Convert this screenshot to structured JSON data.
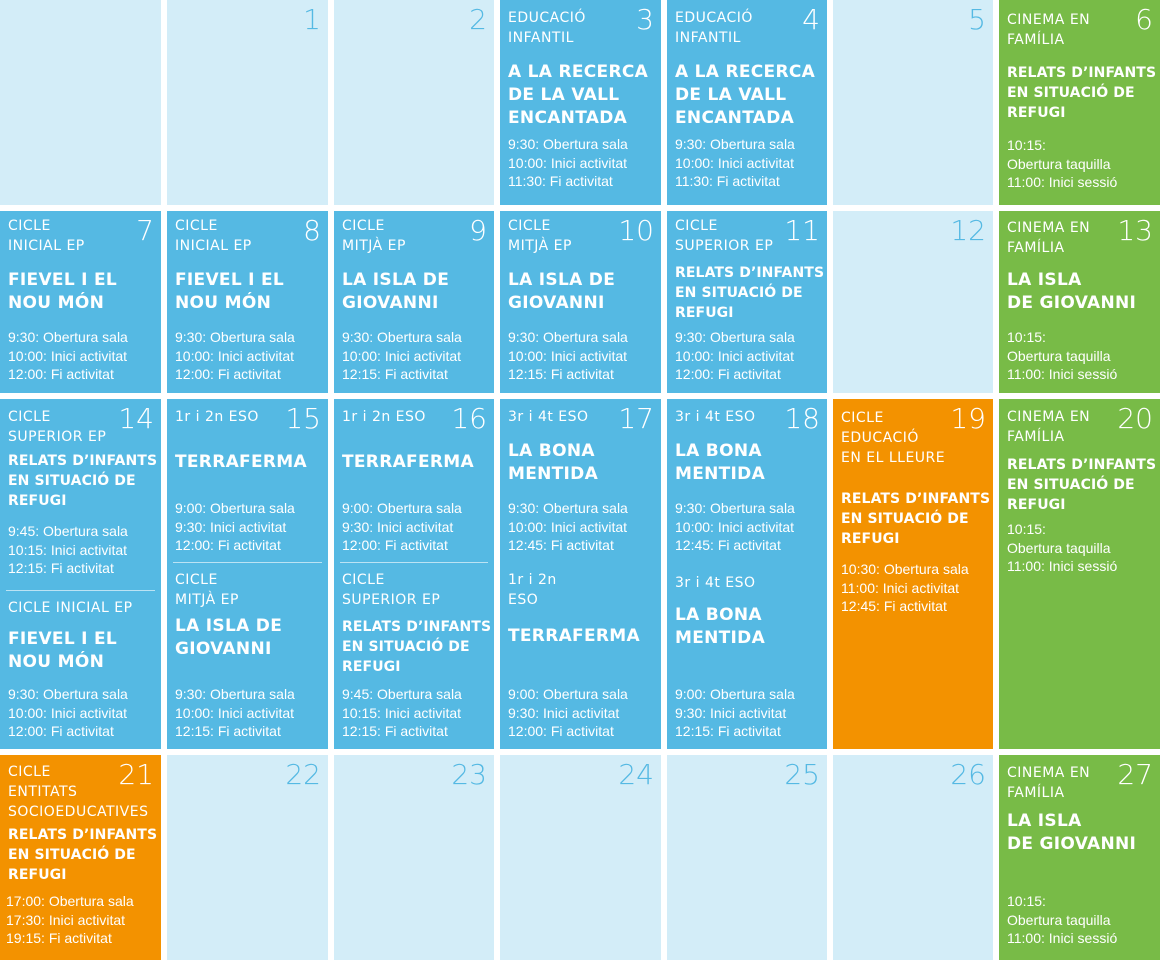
{
  "calendar": {
    "row1": {
      "d1": {
        "day": "1"
      },
      "d2": {
        "day": "2"
      },
      "d3": {
        "day": "3",
        "category": "EDUCACIÓ\nINFANTIL",
        "title": "A LA RECERCA\nDE LA VALL\nENCANTADA",
        "times": "9:30: Obertura sala\n10:00: Inici activitat\n11:30: Fi activitat"
      },
      "d4": {
        "day": "4",
        "category": "EDUCACIÓ\nINFANTIL",
        "title": "A LA RECERCA\nDE LA VALL\nENCANTADA",
        "times": "9:30: Obertura sala\n10:00: Inici activitat\n11:30: Fi activitat"
      },
      "d5": {
        "day": "5"
      },
      "d6": {
        "day": "6",
        "category": "CINEMA EN\nFAMÍLIA",
        "title": "RELATS D’INFANTS\nEN SITUACIÓ DE\nREFUGI",
        "times": "10:15:\nObertura taquilla\n11:00: Inici sessió"
      }
    },
    "row2": {
      "d7": {
        "day": "7",
        "category": "CICLE\nINICIAL EP",
        "title": "FIEVEL I EL\nNOU MÓN",
        "times": "9:30: Obertura sala\n10:00: Inici activitat\n12:00: Fi activitat"
      },
      "d8": {
        "day": "8",
        "category": "CICLE\nINICIAL EP",
        "title": "FIEVEL I EL\nNOU MÓN",
        "times": "9:30: Obertura sala\n10:00: Inici activitat\n12:00: Fi activitat"
      },
      "d9": {
        "day": "9",
        "category": "CICLE\nMITJÀ EP",
        "title": "LA ISLA DE\nGIOVANNI",
        "times": "9:30: Obertura sala\n10:00: Inici activitat\n12:15: Fi activitat"
      },
      "d10": {
        "day": "10",
        "category": "CICLE\nMITJÀ EP",
        "title": "LA ISLA DE\nGIOVANNI",
        "times": "9:30: Obertura sala\n10:00: Inici activitat\n12:15: Fi activitat"
      },
      "d11": {
        "day": "11",
        "category": "CICLE\nSUPERIOR EP",
        "title": "RELATS D’INFANTS\nEN SITUACIÓ DE\nREFUGI",
        "times": "9:30: Obertura sala\n10:00: Inici activitat\n12:00: Fi activitat"
      },
      "d12": {
        "day": "12"
      },
      "d13": {
        "day": "13",
        "category": "CINEMA EN\nFAMÍLIA",
        "title": "LA ISLA\nDE GIOVANNI",
        "times": "10:15:\nObertura taquilla\n11:00: Inici sessió"
      }
    },
    "row3": {
      "d14": {
        "day": "14",
        "a": {
          "category": "CICLE\nSUPERIOR EP",
          "title": "RELATS D’INFANTS\nEN SITUACIÓ DE\nREFUGI",
          "times": "9:45: Obertura sala\n10:15: Inici activitat\n12:15: Fi activitat"
        },
        "b": {
          "category": "CICLE INICIAL EP",
          "title": "FIEVEL I EL\nNOU MÓN",
          "times": "9:30: Obertura sala\n10:00: Inici activitat\n12:00: Fi activitat"
        }
      },
      "d15": {
        "day": "15",
        "a": {
          "category": "1r i 2n ESO",
          "title": "TERRAFERMA",
          "times": "9:00: Obertura sala\n9:30: Inici activitat\n12:00: Fi activitat"
        },
        "b": {
          "category": "CICLE\nMITJÀ EP",
          "title": "LA ISLA DE\nGIOVANNI",
          "times": "9:30: Obertura sala\n10:00: Inici activitat\n12:15: Fi activitat"
        }
      },
      "d16": {
        "day": "16",
        "a": {
          "category": "1r i 2n ESO",
          "title": "TERRAFERMA",
          "times": "9:00: Obertura sala\n9:30: Inici activitat\n12:00: Fi activitat"
        },
        "b": {
          "category": "CICLE\nSUPERIOR EP",
          "title": "RELATS D’INFANTS\nEN SITUACIÓ DE\nREFUGI",
          "times": "9:45: Obertura sala\n10:15: Inici activitat\n12:15: Fi activitat"
        }
      },
      "d17": {
        "day": "17",
        "a": {
          "category": "3r i 4t ESO",
          "title": "LA BONA\nMENTIDA",
          "times": "9:30: Obertura sala\n10:00: Inici activitat\n12:45: Fi activitat"
        },
        "b": {
          "category": "1r i 2n\nESO",
          "title": "TERRAFERMA",
          "times": "9:00: Obertura sala\n9:30: Inici activitat\n12:00: Fi activitat"
        }
      },
      "d18": {
        "day": "18",
        "a": {
          "category": "3r i 4t ESO",
          "title": "LA BONA\nMENTIDA",
          "times": "9:30: Obertura sala\n10:00: Inici activitat\n12:45: Fi activitat"
        },
        "b": {
          "category": "3r i 4t ESO",
          "title": "LA BONA\nMENTIDA",
          "times": "9:00: Obertura sala\n9:30: Inici activitat\n12:15: Fi activitat"
        }
      },
      "d19": {
        "day": "19",
        "category": "CICLE\nEDUCACIÓ\nEN EL LLEURE",
        "title": "RELATS D’INFANTS\nEN SITUACIÓ DE\nREFUGI",
        "times": "10:30: Obertura sala\n11:00: Inici activitat\n12:45: Fi activitat"
      },
      "d20": {
        "day": "20",
        "category": "CINEMA EN\nFAMÍLIA",
        "title": "RELATS D’INFANTS\nEN SITUACIÓ DE\nREFUGI",
        "times": "10:15:\nObertura taquilla\n11:00: Inici sessió"
      }
    },
    "row4": {
      "d21": {
        "day": "21",
        "category": "CICLE\nENTITATS\nSOCIOEDUCATIVES",
        "title": "RELATS D’INFANTS\nEN SITUACIÓ DE\nREFUGI",
        "times": "17:00: Obertura sala\n17:30: Inici activitat\n19:15: Fi activitat"
      },
      "d22": {
        "day": "22"
      },
      "d23": {
        "day": "23"
      },
      "d24": {
        "day": "24"
      },
      "d25": {
        "day": "25"
      },
      "d26": {
        "day": "26"
      },
      "d27": {
        "day": "27",
        "category": "CINEMA EN\nFAMÍLIA",
        "title": "LA ISLA\nDE GIOVANNI",
        "times": "10:15:\nObertura taquilla\n11:00: Inici sessió"
      }
    }
  },
  "colors": {
    "empty": "#d3edf8",
    "school": "#55b9e3",
    "family": "#78bb47",
    "leisure": "#f39200"
  }
}
